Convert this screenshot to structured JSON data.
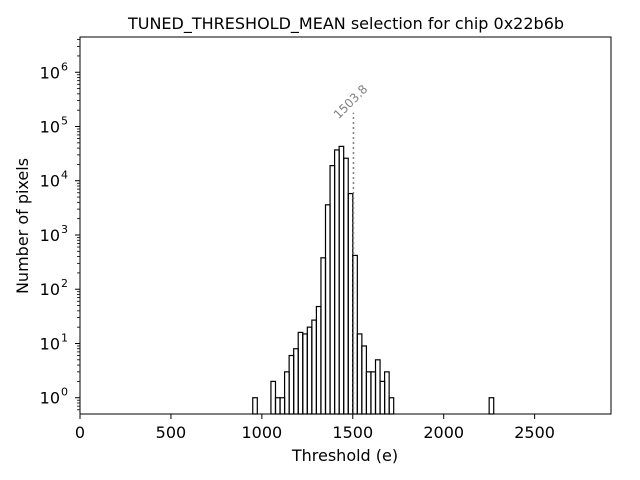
{
  "chart_data": {
    "type": "histogram",
    "title": "TUNED_THRESHOLD_MEAN selection for chip 0x22b6b",
    "xlabel": "Threshold (e)",
    "ylabel": "Number of pixels",
    "xlim": [
      0,
      2920
    ],
    "ylim_log10": [
      -0.3,
      6.65
    ],
    "yscale": "log",
    "x_ticks": [
      0,
      500,
      1000,
      1500,
      2000,
      2500
    ],
    "x_tick_labels": [
      "0",
      "500",
      "1000",
      "1500",
      "2000",
      "2500"
    ],
    "y_ticks_exp": [
      0,
      1,
      2,
      3,
      4,
      5,
      6
    ],
    "y_tick_base": "10",
    "y_tick_exponents": [
      "0",
      "1",
      "2",
      "3",
      "4",
      "5",
      "6"
    ],
    "bin_width": 25,
    "bins": [
      {
        "x": 950,
        "count": 1
      },
      {
        "x": 1050,
        "count": 2
      },
      {
        "x": 1075,
        "count": 1
      },
      {
        "x": 1100,
        "count": 1
      },
      {
        "x": 1125,
        "count": 3
      },
      {
        "x": 1150,
        "count": 6
      },
      {
        "x": 1175,
        "count": 8
      },
      {
        "x": 1200,
        "count": 16
      },
      {
        "x": 1225,
        "count": 15
      },
      {
        "x": 1250,
        "count": 20
      },
      {
        "x": 1275,
        "count": 27
      },
      {
        "x": 1300,
        "count": 48
      },
      {
        "x": 1325,
        "count": 380
      },
      {
        "x": 1350,
        "count": 3600
      },
      {
        "x": 1375,
        "count": 19000
      },
      {
        "x": 1400,
        "count": 37000
      },
      {
        "x": 1425,
        "count": 43000
      },
      {
        "x": 1450,
        "count": 26000
      },
      {
        "x": 1475,
        "count": 5800
      },
      {
        "x": 1500,
        "count": 420
      },
      {
        "x": 1525,
        "count": 15
      },
      {
        "x": 1550,
        "count": 9
      },
      {
        "x": 1575,
        "count": 3
      },
      {
        "x": 1600,
        "count": 3
      },
      {
        "x": 1625,
        "count": 5
      },
      {
        "x": 1650,
        "count": 2
      },
      {
        "x": 1675,
        "count": 3
      },
      {
        "x": 1700,
        "count": 1
      },
      {
        "x": 2250,
        "count": 1
      }
    ],
    "annotation": {
      "x": 1503.8,
      "label": "1503.8",
      "y_top": 180000,
      "color": "#808080"
    },
    "line_color": "#000000"
  }
}
